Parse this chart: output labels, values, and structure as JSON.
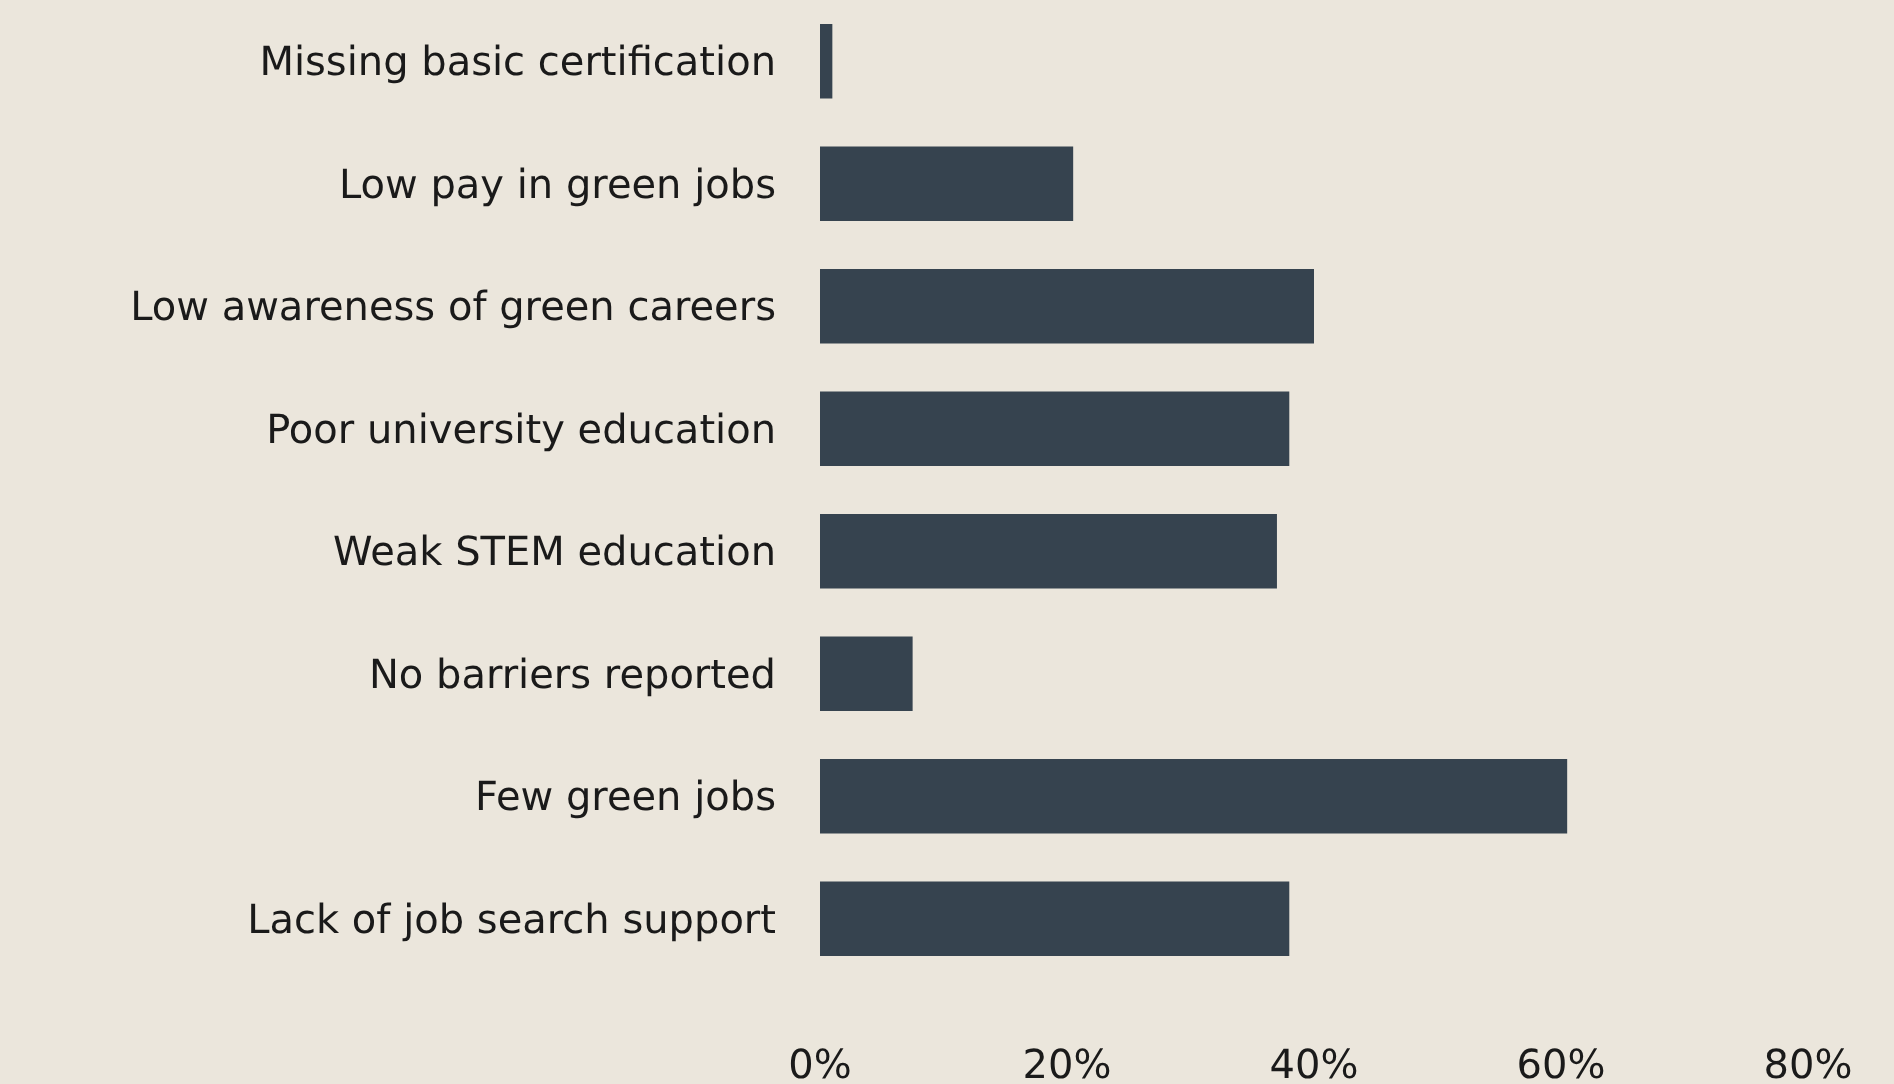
{
  "chart_data": {
    "type": "bar",
    "orientation": "horizontal",
    "categories": [
      "Missing basic certification",
      "Low pay in green jobs",
      "Low awareness of green careers",
      "Poor university education",
      "Weak STEM education",
      "No barriers reported",
      "Few green jobs",
      "Lack of job search support"
    ],
    "values": [
      1,
      20.5,
      40,
      38,
      37,
      7.5,
      60.5,
      38
    ],
    "color": "#36434f",
    "xlim": [
      0,
      80
    ],
    "xticks": [
      {
        "value": 0,
        "label": "0%"
      },
      {
        "value": 20,
        "label": "20%"
      },
      {
        "value": 40,
        "label": "40%"
      },
      {
        "value": 60,
        "label": "60%"
      },
      {
        "value": 80,
        "label": "80%"
      }
    ],
    "grid": false
  }
}
